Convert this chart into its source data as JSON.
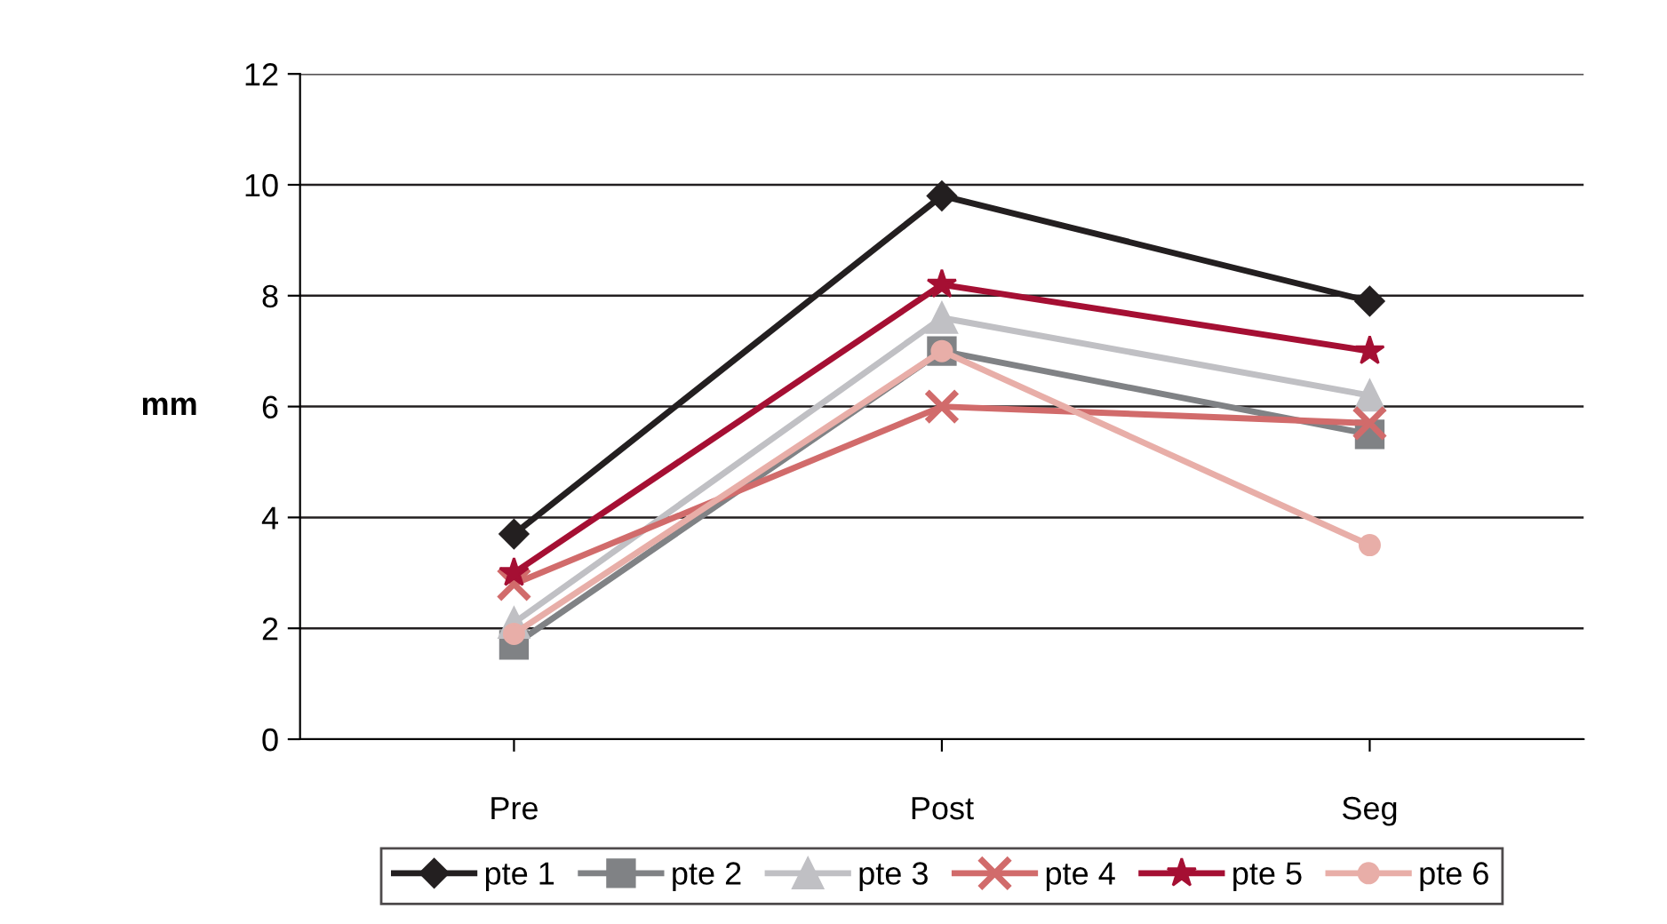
{
  "chart_data": {
    "type": "line",
    "ylabel": "mm",
    "categories": [
      "Pre",
      "Post",
      "Seg"
    ],
    "ylim": [
      0,
      12
    ],
    "yticks": [
      0,
      2,
      4,
      6,
      8,
      10,
      12
    ],
    "grid": "y",
    "legend": "bottom",
    "line_style": "solid",
    "series": [
      {
        "name": "pte 1",
        "color": "#231f20",
        "marker": "diamond",
        "values": [
          3.7,
          9.8,
          7.9
        ]
      },
      {
        "name": "pte 2",
        "color": "#808285",
        "marker": "square",
        "values": [
          1.7,
          7.0,
          5.5
        ]
      },
      {
        "name": "pte 3",
        "color": "#c0c0c4",
        "marker": "triangle",
        "values": [
          2.1,
          7.6,
          6.2
        ]
      },
      {
        "name": "pte 4",
        "color": "#d16b6b",
        "marker": "cross",
        "values": [
          2.8,
          6.0,
          5.7
        ]
      },
      {
        "name": "pte 5",
        "color": "#a50f33",
        "marker": "star",
        "values": [
          3.0,
          8.2,
          7.0
        ]
      },
      {
        "name": "pte 6",
        "color": "#e8aea8",
        "marker": "circle",
        "values": [
          1.9,
          7.0,
          3.5
        ]
      }
    ]
  }
}
